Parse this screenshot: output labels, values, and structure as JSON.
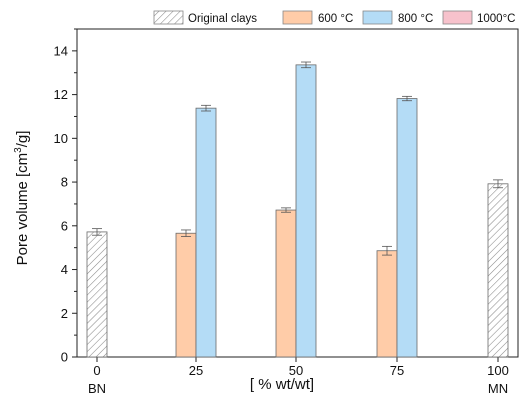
{
  "chart_data": {
    "type": "bar",
    "xlabel": "[ % wt/wt]",
    "ylabel_main": "Pore volume [cm",
    "ylabel_sup": "3",
    "ylabel_end": "/g]",
    "ylim": [
      0,
      15
    ],
    "yticks": [
      "0",
      "2",
      "4",
      "6",
      "8",
      "10",
      "12",
      "14"
    ],
    "categories": [
      "0",
      "25",
      "50",
      "75",
      "100"
    ],
    "end_labels": {
      "left": "BN",
      "right": "MN"
    },
    "legend_position": "top",
    "series": [
      {
        "name": "Original clays",
        "color": "#ffffff",
        "pattern": "hatch",
        "values": [
          5.72,
          null,
          null,
          null,
          7.92
        ],
        "errors": [
          0.15,
          null,
          null,
          null,
          0.18
        ]
      },
      {
        "name": "600 °C",
        "color": "#ffcca8",
        "values": [
          null,
          5.66,
          6.72,
          4.86,
          null
        ],
        "errors": [
          null,
          0.15,
          0.1,
          0.2,
          null
        ]
      },
      {
        "name": "800 °C",
        "color": "#b4dcf6",
        "values": [
          null,
          11.38,
          13.36,
          11.82,
          null
        ],
        "errors": [
          null,
          0.13,
          0.13,
          0.1,
          null
        ]
      },
      {
        "name": "1000°C",
        "color": "#f7c2cc",
        "values": [
          null,
          null,
          null,
          null,
          null
        ],
        "errors": [
          null,
          null,
          null,
          null,
          null
        ]
      }
    ]
  }
}
